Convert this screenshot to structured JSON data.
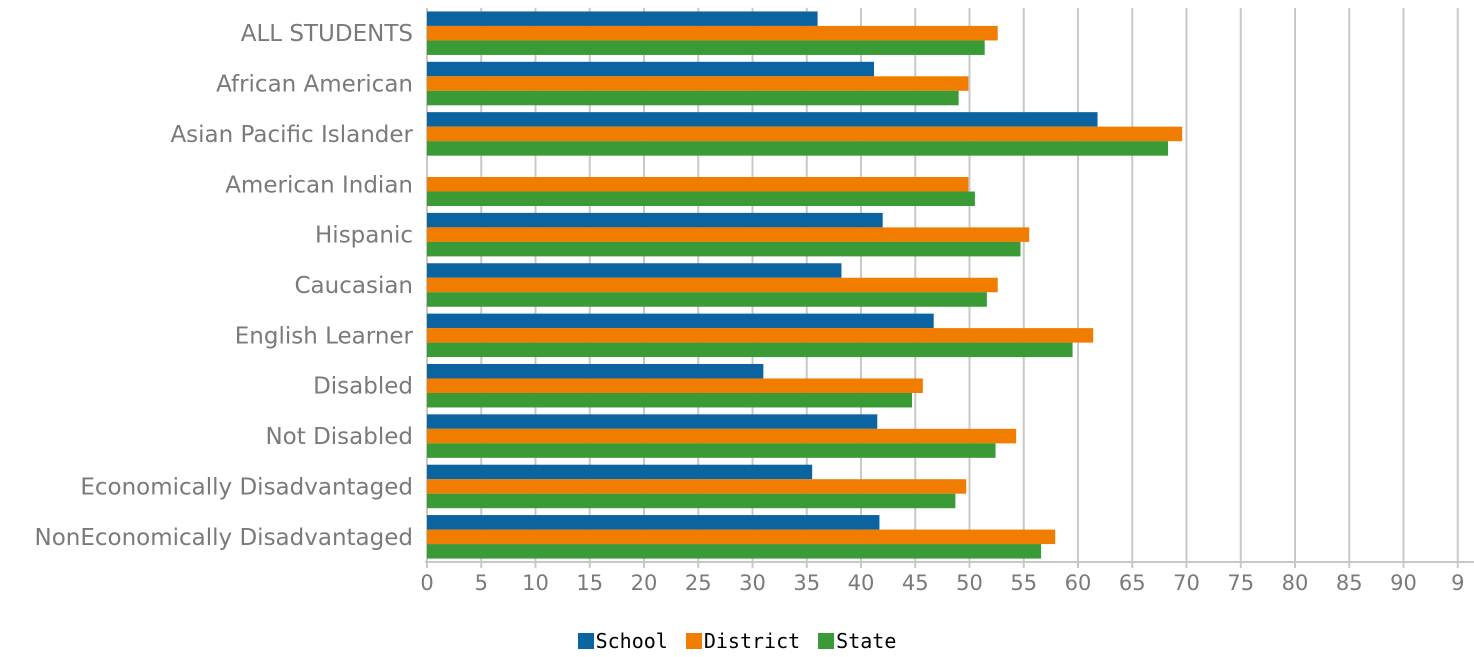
{
  "chart_data": {
    "type": "bar",
    "orientation": "horizontal",
    "categories": [
      "ALL STUDENTS",
      "African American",
      "Asian Pacific Islander",
      "American Indian",
      "Hispanic",
      "Caucasian",
      "English Learner",
      "Disabled",
      "Not Disabled",
      "Economically Disadvantaged",
      "NonEconomically Disadvantaged"
    ],
    "series": [
      {
        "name": "School",
        "color": "#0b64a0",
        "values": [
          36,
          41.2,
          61.8,
          null,
          42,
          38.2,
          46.7,
          31,
          41.5,
          35.5,
          41.7
        ]
      },
      {
        "name": "District",
        "color": "#f07c00",
        "values": [
          52.6,
          49.9,
          69.6,
          49.9,
          55.5,
          52.6,
          61.4,
          45.7,
          54.3,
          49.7,
          57.9
        ]
      },
      {
        "name": "State",
        "color": "#3a9a36",
        "values": [
          51.4,
          49,
          68.3,
          50.5,
          54.7,
          51.6,
          59.5,
          44.7,
          52.4,
          48.7,
          56.6
        ]
      }
    ],
    "xticks": [
      "0",
      "5",
      "10",
      "15",
      "20",
      "25",
      "30",
      "35",
      "40",
      "45",
      "50",
      "55",
      "60",
      "65",
      "70",
      "75",
      "80",
      "85",
      "90",
      "9"
    ],
    "xlim": [
      0,
      95
    ],
    "grid": true,
    "legend_position": "bottom"
  }
}
